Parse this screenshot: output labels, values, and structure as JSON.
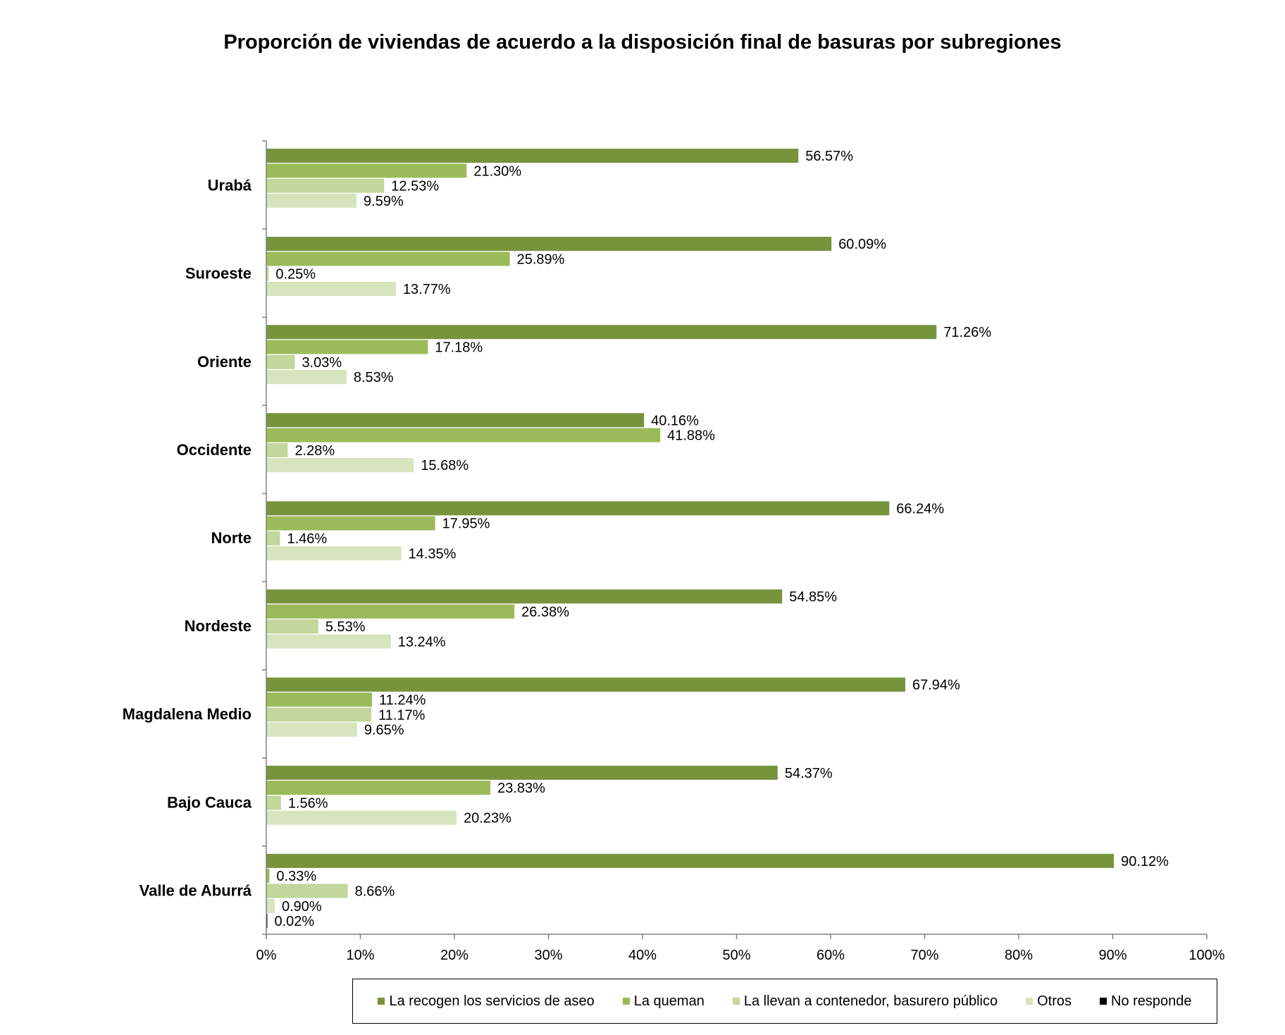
{
  "chart_data": {
    "type": "bar",
    "orientation": "horizontal",
    "title": "Proporción de viviendas de acuerdo a la disposición final de basuras por subregiones",
    "xlabel": "",
    "ylabel": "",
    "xlim": [
      0,
      100
    ],
    "x_ticks": [
      "0%",
      "10%",
      "20%",
      "30%",
      "40%",
      "50%",
      "60%",
      "70%",
      "80%",
      "90%",
      "100%"
    ],
    "grid": false,
    "legend_position": "bottom",
    "categories": [
      "Urabá",
      "Suroeste",
      "Oriente",
      "Occidente",
      "Norte",
      "Nordeste",
      "Magdalena Medio",
      "Bajo Cauca",
      "Valle de Aburrá"
    ],
    "series": [
      {
        "name": "La recogen los servicios de aseo",
        "color": "#77933C",
        "values": [
          56.57,
          60.09,
          71.26,
          40.16,
          66.24,
          54.85,
          67.94,
          54.37,
          90.12
        ],
        "labels": [
          "56.57%",
          "60.09%",
          "71.26%",
          "40.16%",
          "66.24%",
          "54.85%",
          "67.94%",
          "54.37%",
          "90.12%"
        ]
      },
      {
        "name": "La queman",
        "color": "#9BBB59",
        "values": [
          21.3,
          25.89,
          17.18,
          41.88,
          17.95,
          26.38,
          11.24,
          23.83,
          0.33
        ],
        "labels": [
          "21.30%",
          "25.89%",
          "17.18%",
          "41.88%",
          "17.95%",
          "26.38%",
          "11.24%",
          "23.83%",
          "0.33%"
        ]
      },
      {
        "name": "La llevan a contenedor, basurero público",
        "color": "#C3D69B",
        "values": [
          12.53,
          0.25,
          3.03,
          2.28,
          1.46,
          5.53,
          11.17,
          1.56,
          8.66
        ],
        "labels": [
          "12.53%",
          "0.25%",
          "3.03%",
          "2.28%",
          "1.46%",
          "5.53%",
          "11.17%",
          "1.56%",
          "8.66%"
        ]
      },
      {
        "name": "Otros",
        "color": "#D7E4BD",
        "values": [
          9.59,
          13.77,
          8.53,
          15.68,
          14.35,
          13.24,
          9.65,
          20.23,
          0.9
        ],
        "labels": [
          "9.59%",
          "13.77%",
          "8.53%",
          "15.68%",
          "14.35%",
          "13.24%",
          "9.65%",
          "20.23%",
          "0.90%"
        ]
      },
      {
        "name": "No responde",
        "color": "#000000",
        "values": [
          null,
          null,
          null,
          null,
          null,
          null,
          null,
          null,
          0.02
        ],
        "labels": [
          null,
          null,
          null,
          null,
          null,
          null,
          null,
          null,
          "0.02%"
        ]
      }
    ]
  }
}
